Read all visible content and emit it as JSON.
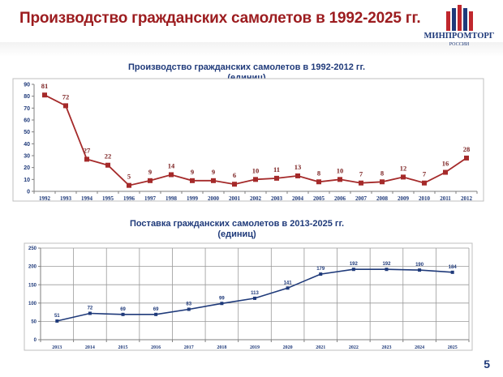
{
  "slide": {
    "title": "Производство гражданских самолетов в 1992-2025 гг.",
    "page_number": "5"
  },
  "logo": {
    "text": "МИНПРОМТОРГ",
    "subtext": "РОССИИ",
    "colors": {
      "primary": "#1f3a7a",
      "accent": "#c0272d"
    }
  },
  "chart_data": [
    {
      "type": "line",
      "title_line1": "Производство гражданских самолетов в 1992-2012 гг.",
      "title_line2": "(единиц)",
      "x": [
        "1992",
        "1993",
        "1994",
        "1995",
        "1996",
        "1997",
        "1998",
        "1999",
        "2000",
        "2001",
        "2002",
        "2003",
        "2004",
        "2005",
        "2006",
        "2007",
        "2008",
        "2009",
        "2010",
        "2011",
        "2012"
      ],
      "values": [
        81,
        72,
        27,
        22,
        5,
        9,
        14,
        9,
        9,
        6,
        10,
        11,
        13,
        8,
        10,
        7,
        8,
        12,
        7,
        16,
        28
      ],
      "ylim": [
        0,
        90
      ],
      "yticks": [
        0,
        10,
        20,
        30,
        40,
        50,
        60,
        70,
        80,
        90
      ],
      "grid": false,
      "line_color": "#a52a2a",
      "marker_color": "#a52a2a",
      "label_color": "#7a1f1f"
    },
    {
      "type": "line",
      "title_line1": "Поставка гражданских самолетов в 2013-2025 гг.",
      "title_line2": "(единиц)",
      "x": [
        "2013",
        "2014",
        "2015",
        "2016",
        "2017",
        "2018",
        "2019",
        "2020",
        "2021",
        "2022",
        "2023",
        "2024",
        "2025"
      ],
      "values": [
        51,
        72,
        69,
        69,
        83,
        99,
        113,
        141,
        179,
        192,
        192,
        190,
        184
      ],
      "ylim": [
        0,
        250
      ],
      "yticks": [
        0,
        50,
        100,
        150,
        200,
        250
      ],
      "grid": true,
      "line_color": "#1f3a7a",
      "marker_color": "#1f3a7a",
      "label_color": "#1f3a7a"
    }
  ]
}
